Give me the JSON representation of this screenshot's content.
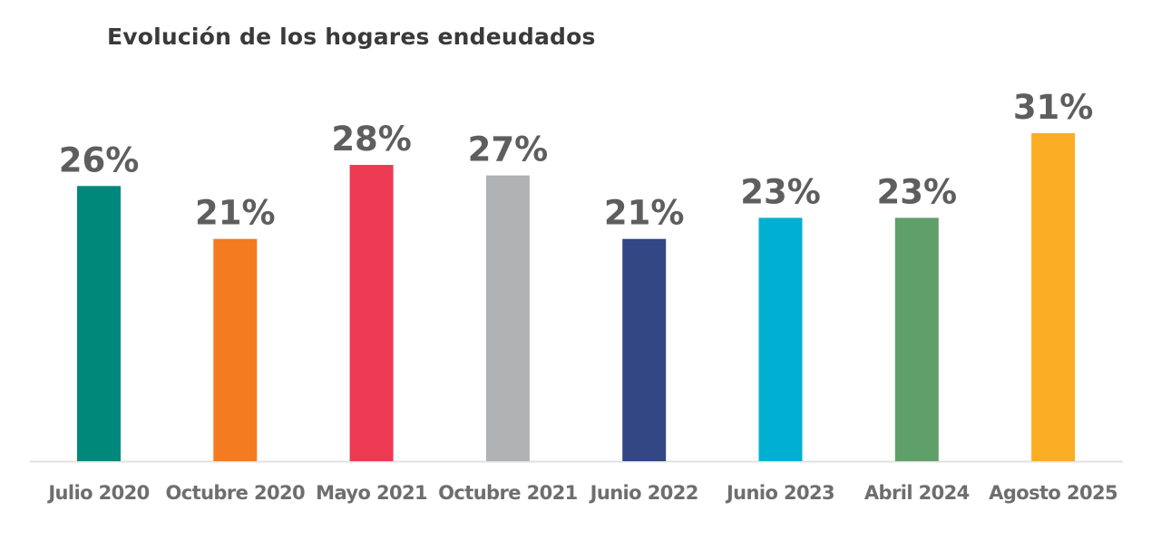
{
  "chart_data": {
    "type": "bar",
    "title": "Evolución de los hogares endeudados",
    "xlabel": "",
    "ylabel": "",
    "ylim": [
      0,
      31
    ],
    "grid": false,
    "legend": "none",
    "categories": [
      "Julio 2020",
      "Octubre 2020",
      "Mayo 2021",
      "Octubre 2021",
      "Junio 2022",
      "Junio 2023",
      "Abril 2024",
      "Agosto 2025"
    ],
    "values": [
      26,
      21,
      28,
      27,
      21,
      23,
      23,
      31
    ],
    "data_labels": [
      "26%",
      "21%",
      "28%",
      "27%",
      "21%",
      "23%",
      "23%",
      "31%"
    ],
    "unit": "%",
    "colors": [
      "#00897b",
      "#f47b20",
      "#ec3a52",
      "#b1b2b4",
      "#334785",
      "#00b0d2",
      "#5f9f6a",
      "#fbad25"
    ],
    "baseline_color": "#e2e2e2"
  }
}
